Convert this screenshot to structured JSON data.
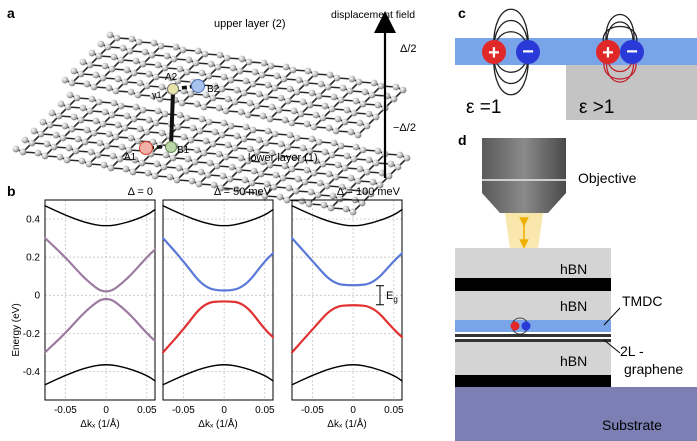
{
  "panels": {
    "a": "a",
    "b": "b",
    "c": "c",
    "d": "d"
  },
  "panel_a": {
    "upper_layer": "upper layer (2)",
    "lower_layer": "lower layer (1)",
    "displacement_field": "displacement field",
    "plus_half_delta": "Δ/2",
    "minus_half_delta": "−Δ/2",
    "atoms": {
      "a1": "A1",
      "b1": "B1",
      "a2": "A2",
      "b2": "B2",
      "gamma": "γ1"
    }
  },
  "chart_data": [
    {
      "type": "line",
      "title": "Δ = 0",
      "xlabel": "Δkₓ (1/Å)",
      "ylabel": "Energy (eV)",
      "xlim": [
        -0.075,
        0.06
      ],
      "ylim": [
        -0.55,
        0.5
      ],
      "xticks": [
        "-0.05",
        "0",
        "0.05"
      ],
      "yticks": [
        "0.4",
        "0.2",
        "0",
        "-0.2",
        "-0.4"
      ],
      "gap": 0.0,
      "series": [
        {
          "band": "conduction-high",
          "color": "#000000",
          "points": [
            [
              -0.075,
              0.47
            ],
            [
              -0.05,
              0.42
            ],
            [
              -0.025,
              0.38
            ],
            [
              0,
              0.36
            ],
            [
              0.025,
              0.38
            ],
            [
              0.05,
              0.42
            ],
            [
              0.06,
              0.45
            ]
          ]
        },
        {
          "band": "conduction-low",
          "color": "#9c7aa0",
          "points": [
            [
              -0.075,
              0.3
            ],
            [
              -0.05,
              0.2
            ],
            [
              -0.025,
              0.08
            ],
            [
              0,
              0.0
            ],
            [
              0.025,
              0.08
            ],
            [
              0.05,
              0.2
            ],
            [
              0.06,
              0.24
            ]
          ]
        },
        {
          "band": "valence-high",
          "color": "#9c7aa0",
          "points": [
            [
              -0.075,
              -0.3
            ],
            [
              -0.05,
              -0.2
            ],
            [
              -0.025,
              -0.08
            ],
            [
              0,
              0.0
            ],
            [
              0.025,
              -0.08
            ],
            [
              0.05,
              -0.2
            ],
            [
              0.06,
              -0.24
            ]
          ]
        },
        {
          "band": "valence-low",
          "color": "#000000",
          "points": [
            [
              -0.075,
              -0.47
            ],
            [
              -0.05,
              -0.42
            ],
            [
              -0.025,
              -0.38
            ],
            [
              0,
              -0.36
            ],
            [
              0.025,
              -0.38
            ],
            [
              0.05,
              -0.42
            ],
            [
              0.06,
              -0.45
            ]
          ]
        }
      ]
    },
    {
      "type": "line",
      "title": "Δ = 50 meV",
      "xlabel": "Δkₓ (1/Å)",
      "xlim": [
        -0.075,
        0.06
      ],
      "ylim": [
        -0.55,
        0.5
      ],
      "xticks": [
        "-0.05",
        "0",
        "0.05"
      ],
      "gap": 0.05,
      "series": [
        {
          "band": "conduction-high",
          "color": "#000000",
          "points": [
            [
              -0.075,
              0.47
            ],
            [
              -0.05,
              0.42
            ],
            [
              -0.025,
              0.38
            ],
            [
              0,
              0.36
            ],
            [
              0.025,
              0.38
            ],
            [
              0.05,
              0.42
            ],
            [
              0.06,
              0.45
            ]
          ]
        },
        {
          "band": "conduction-low",
          "color": "#5a78d8",
          "points": [
            [
              -0.075,
              0.3
            ],
            [
              -0.05,
              0.18
            ],
            [
              -0.025,
              0.04
            ],
            [
              0,
              0.02
            ],
            [
              0.025,
              0.04
            ],
            [
              0.05,
              0.18
            ],
            [
              0.06,
              0.22
            ]
          ]
        },
        {
          "band": "valence-high",
          "color": "#e03030",
          "points": [
            [
              -0.075,
              -0.3
            ],
            [
              -0.05,
              -0.18
            ],
            [
              -0.025,
              -0.04
            ],
            [
              0,
              -0.03
            ],
            [
              0.025,
              -0.04
            ],
            [
              0.05,
              -0.18
            ],
            [
              0.06,
              -0.22
            ]
          ]
        },
        {
          "band": "valence-low",
          "color": "#000000",
          "points": [
            [
              -0.075,
              -0.47
            ],
            [
              -0.05,
              -0.42
            ],
            [
              -0.025,
              -0.38
            ],
            [
              0,
              -0.36
            ],
            [
              0.025,
              -0.38
            ],
            [
              0.05,
              -0.42
            ],
            [
              0.06,
              -0.45
            ]
          ]
        }
      ]
    },
    {
      "type": "line",
      "title": "Δ = 100 meV",
      "xlabel": "Δkₓ (1/Å)",
      "xlim": [
        -0.075,
        0.06
      ],
      "ylim": [
        -0.55,
        0.5
      ],
      "xticks": [
        "-0.05",
        "0",
        "0.05"
      ],
      "gap": 0.1,
      "gap_label": "E",
      "gap_label_sub": "g",
      "series": [
        {
          "band": "conduction-high",
          "color": "#000000",
          "points": [
            [
              -0.075,
              0.47
            ],
            [
              -0.05,
              0.42
            ],
            [
              -0.025,
              0.38
            ],
            [
              0,
              0.36
            ],
            [
              0.025,
              0.38
            ],
            [
              0.05,
              0.42
            ],
            [
              0.06,
              0.45
            ]
          ]
        },
        {
          "band": "conduction-low",
          "color": "#5a78d8",
          "points": [
            [
              -0.075,
              0.3
            ],
            [
              -0.05,
              0.18
            ],
            [
              -0.025,
              0.06
            ],
            [
              0,
              0.05
            ],
            [
              0.025,
              0.06
            ],
            [
              0.05,
              0.18
            ],
            [
              0.06,
              0.22
            ]
          ]
        },
        {
          "band": "valence-high",
          "color": "#e03030",
          "points": [
            [
              -0.075,
              -0.3
            ],
            [
              -0.05,
              -0.18
            ],
            [
              -0.025,
              -0.06
            ],
            [
              0,
              -0.05
            ],
            [
              0.025,
              -0.06
            ],
            [
              0.05,
              -0.18
            ],
            [
              0.06,
              -0.22
            ]
          ]
        },
        {
          "band": "valence-low",
          "color": "#000000",
          "points": [
            [
              -0.075,
              -0.47
            ],
            [
              -0.05,
              -0.42
            ],
            [
              -0.025,
              -0.38
            ],
            [
              0,
              -0.36
            ],
            [
              0.025,
              -0.38
            ],
            [
              0.05,
              -0.42
            ],
            [
              0.06,
              -0.45
            ]
          ]
        }
      ]
    }
  ],
  "panel_c": {
    "eps_vacuum": "ε =1",
    "eps_dielectric": "ε >1",
    "plus": "+",
    "minus": "−"
  },
  "panel_d": {
    "objective": "Objective",
    "hbn_top": "hBN",
    "hbn_mid": "hBN",
    "hbn_bottom": "hBN",
    "tmdc": "TMDC",
    "graphene": "2L -\ngraphene",
    "substrate": "Substrate"
  },
  "colors": {
    "blue_layer": "#7aa4e8",
    "gray_block": "#c4c4c4",
    "substrate": "#7b7fb3",
    "red_charge": "#e02828",
    "blue_charge": "#2a3ad8",
    "beam": "#f6e3a0"
  }
}
